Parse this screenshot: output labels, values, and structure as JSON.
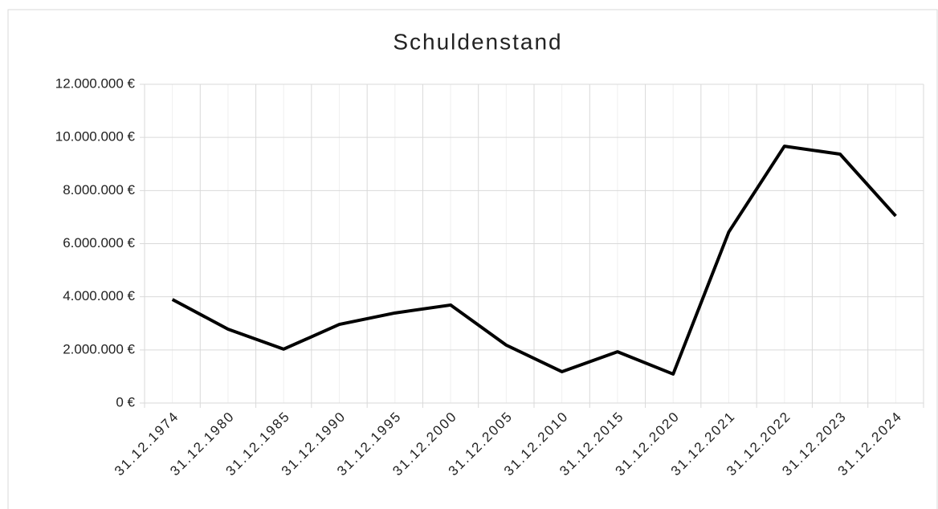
{
  "chart_data": {
    "type": "line",
    "title": "Schuldenstand",
    "categories": [
      "31.12.1974",
      "31.12.1980",
      "31.12.1985",
      "31.12.1990",
      "31.12.1995",
      "31.12.2000",
      "31.12.2005",
      "31.12.2010",
      "31.12.2015",
      "31.12.2020",
      "31.12.2021",
      "31.12.2022",
      "31.12.2023",
      "31.12.2024"
    ],
    "series": [
      {
        "name": "Schuldenstand",
        "color": "#000000",
        "values": [
          3900000,
          2780000,
          2030000,
          2960000,
          3390000,
          3690000,
          2180000,
          1180000,
          1930000,
          1090000,
          6440000,
          9670000,
          9370000,
          7040000
        ]
      }
    ],
    "ylim": [
      0,
      12000000
    ],
    "yticks": [
      {
        "value": 0,
        "label": "0 €"
      },
      {
        "value": 2000000,
        "label": "2.000.000 €"
      },
      {
        "value": 4000000,
        "label": "4.000.000 €"
      },
      {
        "value": 6000000,
        "label": "6.000.000 €"
      },
      {
        "value": 8000000,
        "label": "8.000.000 €"
      },
      {
        "value": 10000000,
        "label": "10.000.000 €"
      },
      {
        "value": 12000000,
        "label": "12.000.000 €"
      }
    ],
    "grid": true
  }
}
